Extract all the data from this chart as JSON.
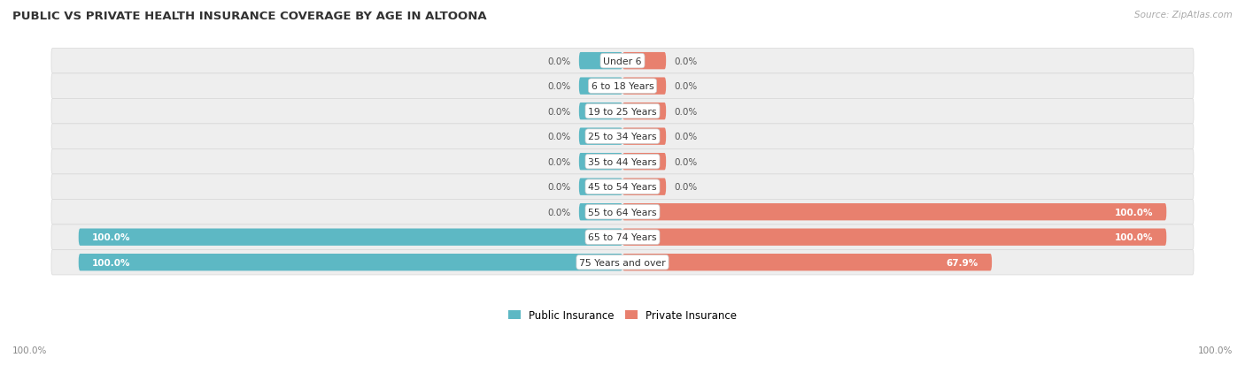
{
  "title": "PUBLIC VS PRIVATE HEALTH INSURANCE COVERAGE BY AGE IN ALTOONA",
  "source": "Source: ZipAtlas.com",
  "categories": [
    "Under 6",
    "6 to 18 Years",
    "19 to 25 Years",
    "25 to 34 Years",
    "35 to 44 Years",
    "45 to 54 Years",
    "55 to 64 Years",
    "65 to 74 Years",
    "75 Years and over"
  ],
  "public_values": [
    0.0,
    0.0,
    0.0,
    0.0,
    0.0,
    0.0,
    0.0,
    100.0,
    100.0
  ],
  "private_values": [
    0.0,
    0.0,
    0.0,
    0.0,
    0.0,
    0.0,
    100.0,
    100.0,
    67.9
  ],
  "public_color": "#5db8c4",
  "private_color": "#e8806e",
  "row_bg_color_light": "#efefef",
  "row_bg_color_dark": "#e5e5e5",
  "label_color_white": "#ffffff",
  "label_color_dark": "#444444",
  "title_color": "#333333",
  "source_color": "#aaaaaa",
  "max_val": 100.0,
  "min_stub": 8.0,
  "legend_public": "Public Insurance",
  "legend_private": "Private Insurance",
  "figsize": [
    14.06,
    4.14
  ],
  "dpi": 100
}
